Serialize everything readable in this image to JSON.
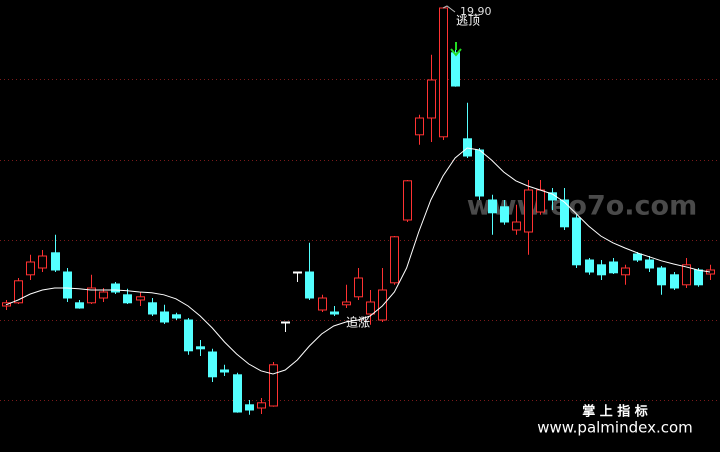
{
  "chart_data": {
    "type": "candlestick",
    "ylim": [
      8.8,
      20.1
    ],
    "grid": true,
    "up_color": "#ff3232",
    "down_color": "#54ffff",
    "flat_color": "#ffffff",
    "open": [
      12.45,
      12.53,
      13.23,
      13.4,
      13.78,
      13.3,
      12.53,
      12.53,
      12.65,
      13.0,
      12.73,
      12.6,
      12.53,
      12.3,
      12.23,
      12.1,
      11.43,
      11.3,
      10.85,
      10.73,
      9.98,
      9.9,
      9.95,
      12.05,
      13.3,
      13.3,
      12.35,
      12.3,
      12.48,
      12.68,
      12.25,
      12.1,
      13.03,
      14.6,
      16.73,
      17.15,
      16.68,
      18.78,
      16.63,
      16.35,
      15.1,
      14.93,
      14.35,
      14.3,
      14.8,
      15.28,
      15.1,
      14.65,
      13.6,
      13.48,
      13.55,
      13.23,
      13.75,
      13.6,
      13.4,
      13.23,
      12.98,
      13.35,
      13.25
    ],
    "high": [
      12.6,
      13.15,
      13.73,
      13.85,
      14.23,
      13.4,
      12.6,
      13.23,
      12.9,
      13.05,
      12.88,
      12.8,
      12.65,
      12.48,
      12.28,
      12.15,
      11.6,
      11.38,
      10.98,
      10.78,
      10.1,
      10.15,
      11.05,
      12.05,
      13.3,
      14.03,
      12.73,
      12.45,
      12.98,
      13.4,
      12.85,
      13.4,
      14.2,
      15.6,
      17.23,
      18.73,
      19.9,
      19.03,
      17.53,
      16.4,
      15.23,
      15.1,
      14.98,
      15.6,
      15.6,
      15.4,
      15.4,
      14.73,
      13.65,
      13.6,
      13.65,
      13.48,
      13.8,
      13.7,
      13.45,
      13.3,
      13.65,
      13.4,
      13.48
    ],
    "low": [
      12.35,
      12.5,
      13.1,
      13.3,
      13.3,
      12.55,
      12.38,
      12.5,
      12.55,
      12.75,
      12.5,
      12.45,
      12.2,
      12.0,
      12.1,
      11.23,
      11.2,
      10.55,
      10.7,
      9.78,
      9.73,
      9.75,
      9.93,
      11.8,
      13.05,
      12.6,
      12.3,
      12.2,
      12.4,
      12.6,
      11.98,
      12.05,
      12.98,
      14.55,
      16.48,
      16.55,
      16.6,
      17.93,
      16.15,
      15.1,
      14.23,
      14.48,
      14.23,
      13.73,
      14.73,
      14.85,
      14.35,
      13.4,
      13.23,
      13.1,
      13.25,
      12.98,
      13.55,
      13.3,
      12.73,
      12.85,
      12.9,
      12.93,
      13.1
    ],
    "close": [
      12.53,
      13.08,
      13.55,
      13.7,
      13.35,
      12.65,
      12.4,
      12.9,
      12.8,
      12.8,
      12.53,
      12.68,
      12.25,
      12.05,
      12.15,
      11.33,
      11.38,
      10.68,
      10.8,
      9.8,
      9.85,
      10.03,
      10.98,
      12.05,
      13.3,
      12.65,
      12.65,
      12.25,
      12.55,
      13.15,
      12.55,
      12.85,
      14.18,
      15.58,
      17.15,
      18.1,
      19.9,
      17.95,
      16.2,
      15.2,
      14.78,
      14.55,
      14.55,
      15.35,
      15.35,
      15.1,
      14.43,
      13.48,
      13.3,
      13.23,
      13.28,
      13.4,
      13.6,
      13.4,
      12.98,
      12.9,
      13.48,
      12.98,
      13.35
    ],
    "ma": {
      "color": "#ffffff",
      "values": [
        12.48,
        12.6,
        12.75,
        12.85,
        12.9,
        12.9,
        12.88,
        12.85,
        12.85,
        12.85,
        12.83,
        12.8,
        12.78,
        12.73,
        12.63,
        12.45,
        12.2,
        11.9,
        11.55,
        11.25,
        11.0,
        10.83,
        10.75,
        10.85,
        11.1,
        11.45,
        11.75,
        11.95,
        12.05,
        12.1,
        12.2,
        12.45,
        12.8,
        13.4,
        14.3,
        15.1,
        15.7,
        16.15,
        16.4,
        16.35,
        16.1,
        15.8,
        15.58,
        15.45,
        15.35,
        15.25,
        15.05,
        14.75,
        14.45,
        14.2,
        14.03,
        13.9,
        13.78,
        13.68,
        13.58,
        13.5,
        13.43,
        13.35,
        13.3
      ]
    },
    "annotations": [
      "19.90",
      "逃顶",
      "追涨"
    ],
    "watermarks": [
      "www.eo7o.com",
      "掌 上 指 标",
      "www.palmindex.com"
    ]
  }
}
